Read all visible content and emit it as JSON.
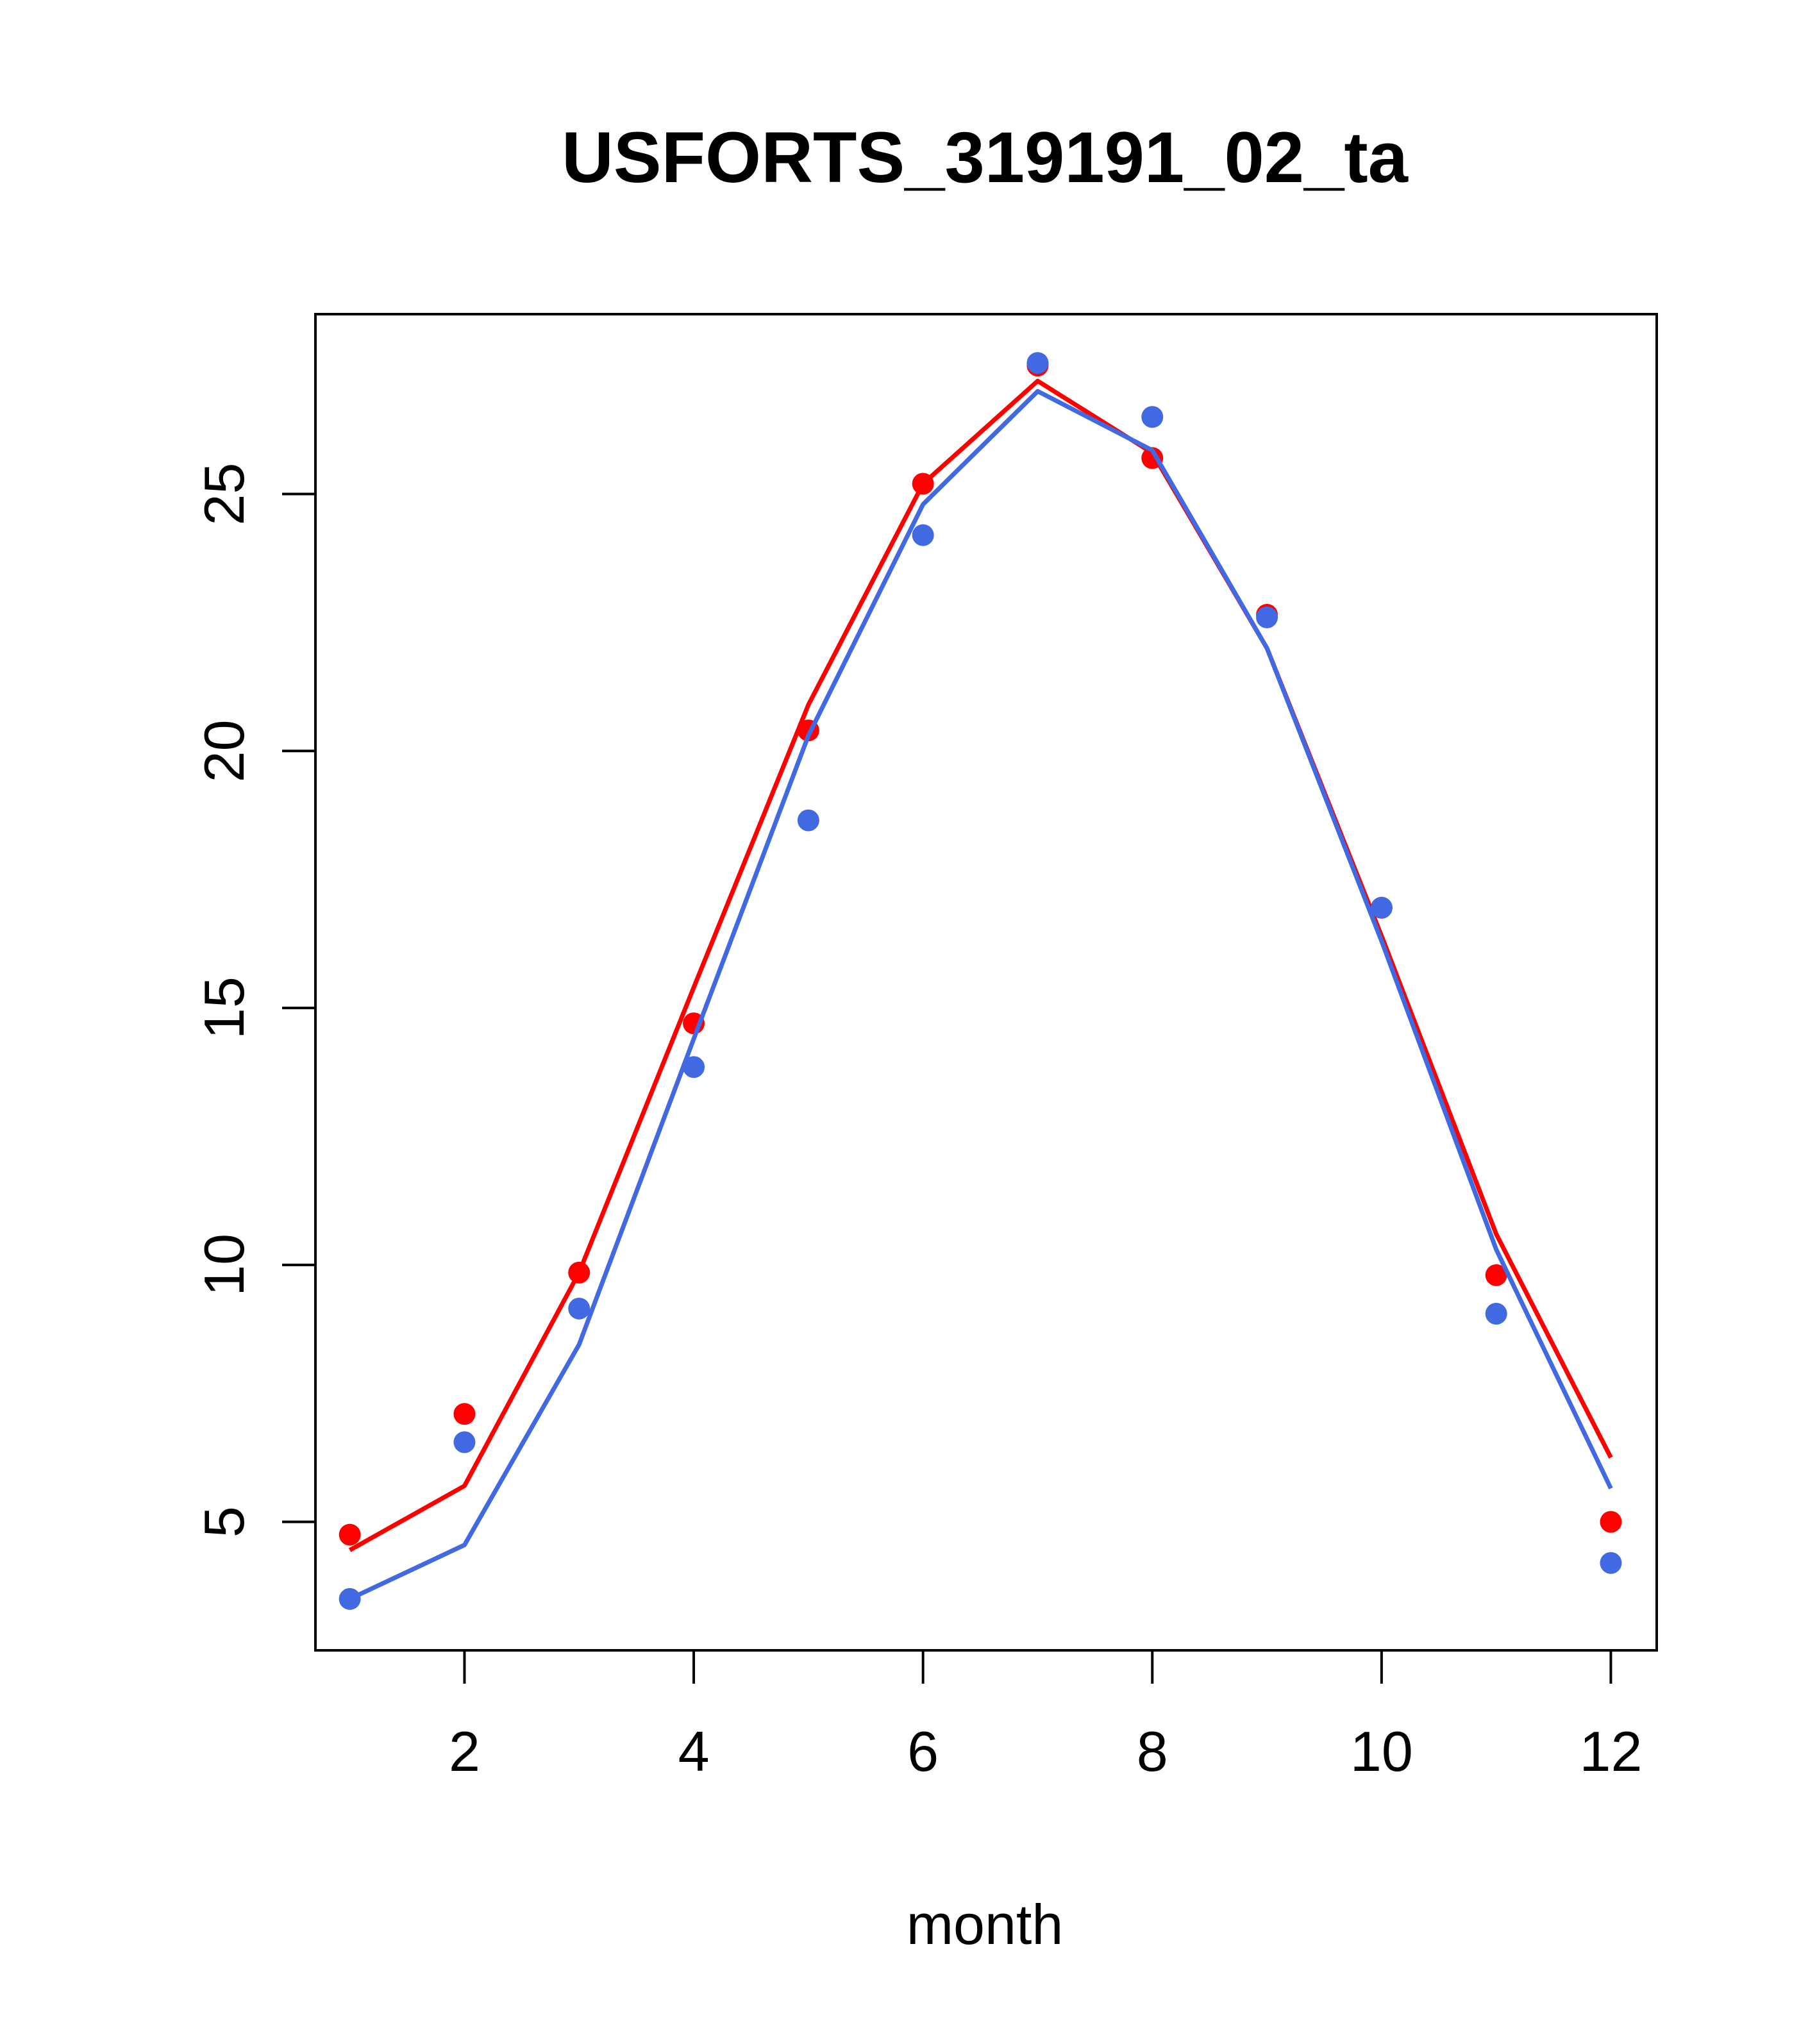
{
  "chart_data": {
    "type": "line",
    "title": "USFORTS_319191_02_ta",
    "xlabel": "month",
    "ylabel": "",
    "xlim": [
      0.7,
      12.4
    ],
    "ylim": [
      2.5,
      28.5
    ],
    "x_ticks": [
      2,
      4,
      6,
      8,
      10,
      12
    ],
    "y_ticks": [
      5,
      10,
      15,
      20,
      25
    ],
    "grid": false,
    "legend": "none",
    "x": [
      1,
      2,
      3,
      4,
      5,
      6,
      7,
      8,
      9,
      10,
      11,
      12
    ],
    "series": [
      {
        "color": "#ff0000",
        "points": [
          4.75,
          7.1,
          9.85,
          14.7,
          20.4,
          25.2,
          27.5,
          25.7,
          22.65,
          16.95,
          9.8,
          5.0
        ],
        "fit": [
          4.45,
          5.7,
          9.85,
          15.4,
          20.9,
          25.2,
          27.2,
          25.8,
          22.0,
          16.4,
          10.6,
          6.25
        ]
      },
      {
        "color": "#4169e1",
        "points": [
          3.5,
          6.55,
          9.15,
          13.85,
          18.65,
          24.2,
          27.55,
          26.5,
          22.6,
          16.95,
          9.05,
          4.2
        ],
        "fit": [
          3.5,
          4.55,
          8.45,
          14.4,
          20.3,
          24.8,
          27.0,
          25.85,
          22.0,
          16.3,
          10.3,
          5.65
        ]
      }
    ]
  }
}
